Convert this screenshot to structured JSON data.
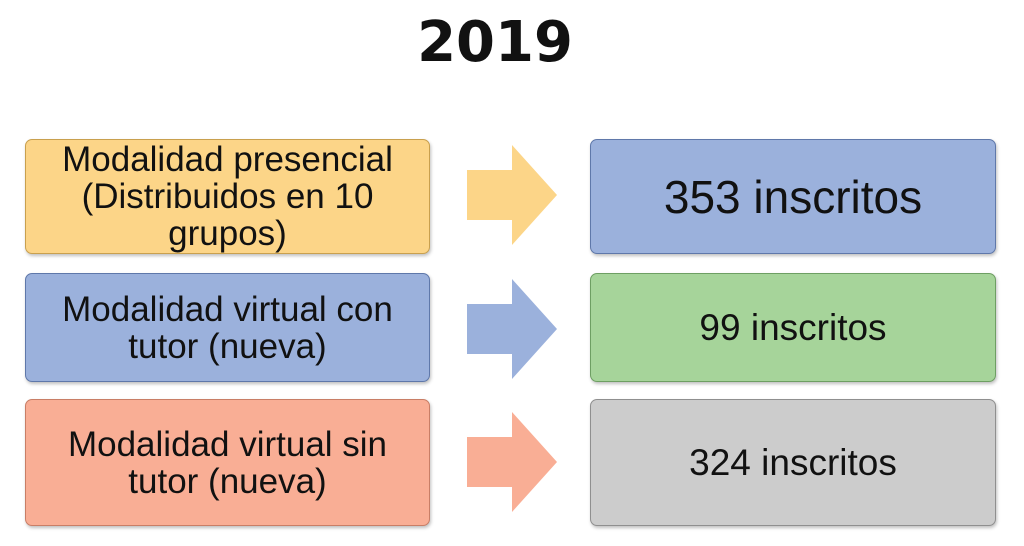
{
  "title": "2019",
  "rows": [
    {
      "left_text": "Modalidad presencial (Distribuidos en 10 grupos)",
      "right_text": "353 inscritos",
      "left_fill": "#fcd588",
      "left_border": "#c9a04e",
      "arrow_fill": "#fcd588",
      "right_fill": "#9bb1dc",
      "right_border": "#5f78aa"
    },
    {
      "left_text": "Modalidad virtual con tutor (nueva)",
      "right_text": "99 inscritos",
      "left_fill": "#9bb1dc",
      "left_border": "#5f78aa",
      "arrow_fill": "#9bb1dc",
      "right_fill": "#a6d49a",
      "right_border": "#6e9f63"
    },
    {
      "left_text": "Modalidad virtual sin tutor (nueva)",
      "right_text": "324 inscritos",
      "left_fill": "#f9ae95",
      "left_border": "#c97e66",
      "arrow_fill": "#f9ae95",
      "right_fill": "#cccccc",
      "right_border": "#8f8f8f"
    }
  ]
}
